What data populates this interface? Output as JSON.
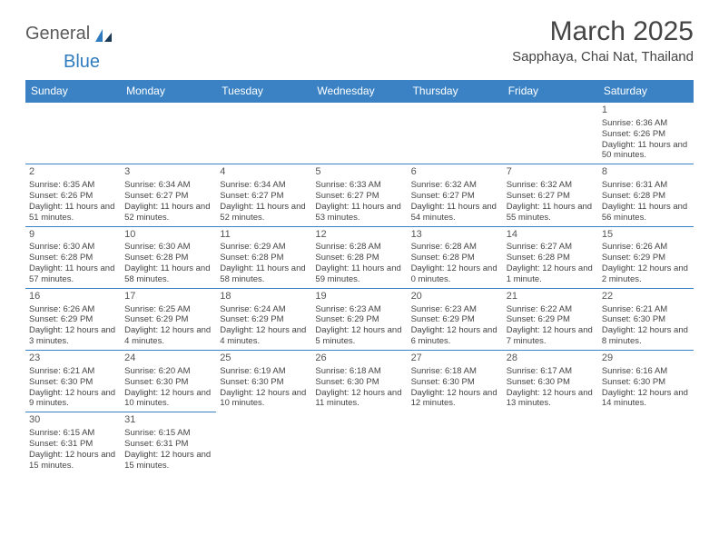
{
  "logo": {
    "text_gen": "General",
    "text_blue": "Blue"
  },
  "title": "March 2025",
  "location": "Sapphaya, Chai Nat, Thailand",
  "header_bg": "#3a82c4",
  "header_fg": "#ffffff",
  "border_color": "#3a82c4",
  "weekdays": [
    "Sunday",
    "Monday",
    "Tuesday",
    "Wednesday",
    "Thursday",
    "Friday",
    "Saturday"
  ],
  "weeks": [
    [
      null,
      null,
      null,
      null,
      null,
      null,
      {
        "n": "1",
        "sr": "Sunrise: 6:36 AM",
        "ss": "Sunset: 6:26 PM",
        "dl": "Daylight: 11 hours and 50 minutes."
      }
    ],
    [
      {
        "n": "2",
        "sr": "Sunrise: 6:35 AM",
        "ss": "Sunset: 6:26 PM",
        "dl": "Daylight: 11 hours and 51 minutes."
      },
      {
        "n": "3",
        "sr": "Sunrise: 6:34 AM",
        "ss": "Sunset: 6:27 PM",
        "dl": "Daylight: 11 hours and 52 minutes."
      },
      {
        "n": "4",
        "sr": "Sunrise: 6:34 AM",
        "ss": "Sunset: 6:27 PM",
        "dl": "Daylight: 11 hours and 52 minutes."
      },
      {
        "n": "5",
        "sr": "Sunrise: 6:33 AM",
        "ss": "Sunset: 6:27 PM",
        "dl": "Daylight: 11 hours and 53 minutes."
      },
      {
        "n": "6",
        "sr": "Sunrise: 6:32 AM",
        "ss": "Sunset: 6:27 PM",
        "dl": "Daylight: 11 hours and 54 minutes."
      },
      {
        "n": "7",
        "sr": "Sunrise: 6:32 AM",
        "ss": "Sunset: 6:27 PM",
        "dl": "Daylight: 11 hours and 55 minutes."
      },
      {
        "n": "8",
        "sr": "Sunrise: 6:31 AM",
        "ss": "Sunset: 6:28 PM",
        "dl": "Daylight: 11 hours and 56 minutes."
      }
    ],
    [
      {
        "n": "9",
        "sr": "Sunrise: 6:30 AM",
        "ss": "Sunset: 6:28 PM",
        "dl": "Daylight: 11 hours and 57 minutes."
      },
      {
        "n": "10",
        "sr": "Sunrise: 6:30 AM",
        "ss": "Sunset: 6:28 PM",
        "dl": "Daylight: 11 hours and 58 minutes."
      },
      {
        "n": "11",
        "sr": "Sunrise: 6:29 AM",
        "ss": "Sunset: 6:28 PM",
        "dl": "Daylight: 11 hours and 58 minutes."
      },
      {
        "n": "12",
        "sr": "Sunrise: 6:28 AM",
        "ss": "Sunset: 6:28 PM",
        "dl": "Daylight: 11 hours and 59 minutes."
      },
      {
        "n": "13",
        "sr": "Sunrise: 6:28 AM",
        "ss": "Sunset: 6:28 PM",
        "dl": "Daylight: 12 hours and 0 minutes."
      },
      {
        "n": "14",
        "sr": "Sunrise: 6:27 AM",
        "ss": "Sunset: 6:28 PM",
        "dl": "Daylight: 12 hours and 1 minute."
      },
      {
        "n": "15",
        "sr": "Sunrise: 6:26 AM",
        "ss": "Sunset: 6:29 PM",
        "dl": "Daylight: 12 hours and 2 minutes."
      }
    ],
    [
      {
        "n": "16",
        "sr": "Sunrise: 6:26 AM",
        "ss": "Sunset: 6:29 PM",
        "dl": "Daylight: 12 hours and 3 minutes."
      },
      {
        "n": "17",
        "sr": "Sunrise: 6:25 AM",
        "ss": "Sunset: 6:29 PM",
        "dl": "Daylight: 12 hours and 4 minutes."
      },
      {
        "n": "18",
        "sr": "Sunrise: 6:24 AM",
        "ss": "Sunset: 6:29 PM",
        "dl": "Daylight: 12 hours and 4 minutes."
      },
      {
        "n": "19",
        "sr": "Sunrise: 6:23 AM",
        "ss": "Sunset: 6:29 PM",
        "dl": "Daylight: 12 hours and 5 minutes."
      },
      {
        "n": "20",
        "sr": "Sunrise: 6:23 AM",
        "ss": "Sunset: 6:29 PM",
        "dl": "Daylight: 12 hours and 6 minutes."
      },
      {
        "n": "21",
        "sr": "Sunrise: 6:22 AM",
        "ss": "Sunset: 6:29 PM",
        "dl": "Daylight: 12 hours and 7 minutes."
      },
      {
        "n": "22",
        "sr": "Sunrise: 6:21 AM",
        "ss": "Sunset: 6:30 PM",
        "dl": "Daylight: 12 hours and 8 minutes."
      }
    ],
    [
      {
        "n": "23",
        "sr": "Sunrise: 6:21 AM",
        "ss": "Sunset: 6:30 PM",
        "dl": "Daylight: 12 hours and 9 minutes."
      },
      {
        "n": "24",
        "sr": "Sunrise: 6:20 AM",
        "ss": "Sunset: 6:30 PM",
        "dl": "Daylight: 12 hours and 10 minutes."
      },
      {
        "n": "25",
        "sr": "Sunrise: 6:19 AM",
        "ss": "Sunset: 6:30 PM",
        "dl": "Daylight: 12 hours and 10 minutes."
      },
      {
        "n": "26",
        "sr": "Sunrise: 6:18 AM",
        "ss": "Sunset: 6:30 PM",
        "dl": "Daylight: 12 hours and 11 minutes."
      },
      {
        "n": "27",
        "sr": "Sunrise: 6:18 AM",
        "ss": "Sunset: 6:30 PM",
        "dl": "Daylight: 12 hours and 12 minutes."
      },
      {
        "n": "28",
        "sr": "Sunrise: 6:17 AM",
        "ss": "Sunset: 6:30 PM",
        "dl": "Daylight: 12 hours and 13 minutes."
      },
      {
        "n": "29",
        "sr": "Sunrise: 6:16 AM",
        "ss": "Sunset: 6:30 PM",
        "dl": "Daylight: 12 hours and 14 minutes."
      }
    ],
    [
      {
        "n": "30",
        "sr": "Sunrise: 6:15 AM",
        "ss": "Sunset: 6:31 PM",
        "dl": "Daylight: 12 hours and 15 minutes."
      },
      {
        "n": "31",
        "sr": "Sunrise: 6:15 AM",
        "ss": "Sunset: 6:31 PM",
        "dl": "Daylight: 12 hours and 15 minutes."
      },
      null,
      null,
      null,
      null,
      null
    ]
  ]
}
